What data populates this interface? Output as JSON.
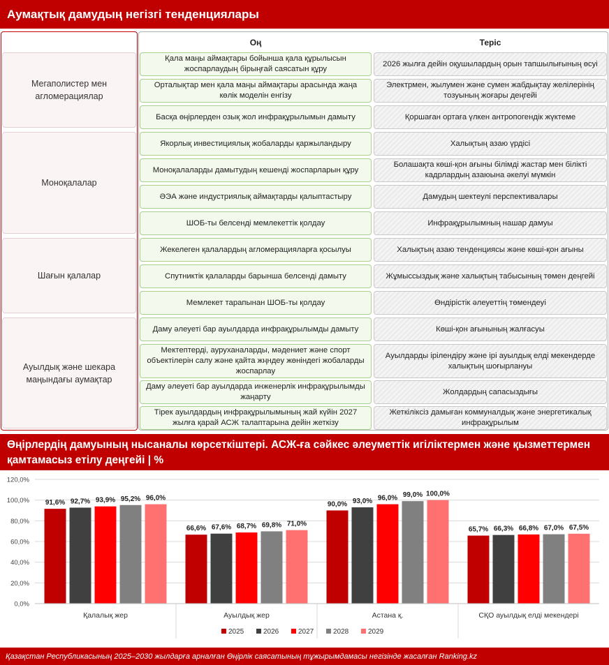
{
  "header": {
    "title": "Аумақтық дамудың негізгі тенденциялары"
  },
  "table": {
    "col_positive": "Оң",
    "col_negative": "Теріс",
    "categories": [
      "Мегаполистер мен агломерациялар",
      "Моноқалалар",
      "Шағын қалалар",
      "Ауылдық және шекара маңындағы аумақтар"
    ],
    "rows": [
      {
        "pos": "Қала маңы аймақтары бойынша қала құрылысын жоспарлаудың бірыңғай саясатын құру",
        "neg": "2026 жылға дейін оқушылардың орын тапшылығының өсуі"
      },
      {
        "pos": "Орталықтар мен қала маңы аймақтары арасында жаңа көлік моделін енгізу",
        "neg": "Электрмен, жылумен және сумен жабдықтау желілерінің тозуының жоғары деңгейі"
      },
      {
        "pos": "Басқа өңірлерден озық жол инфрақұрылымын дамыту",
        "neg": "Қоршаған ортаға үлкен антропогендік жүктеме"
      },
      {
        "pos": "Якорлық инвестициялық жобаларды қаржыландыру",
        "neg": "Халықтың азаю үрдісі"
      },
      {
        "pos": "Моноқалаларды дамытудың кешенді жоспарларын құру",
        "neg": "Болашақта көші-қон ағыны білімді жастар мен білікті кадрлардың азаюына әкелуі мүмкін"
      },
      {
        "pos": "ӘЭА және индустриялық аймақтарды қалыптастыру",
        "neg": "Дамудың шектеулі перспективалары"
      },
      {
        "pos": "ШОБ-ты белсенді мемлекеттік қолдау",
        "neg": "Инфрақұрылымның нашар дамуы"
      },
      {
        "pos": "Жекелеген қалалардың агломерацияларға қосылуы",
        "neg": "Халықтың азаю тенденциясы және көші-қон ағыны"
      },
      {
        "pos": "Спутниктік қалаларды барынша белсенді дамыту",
        "neg": "Жұмыссыздық және халықтың табысының төмен деңгейі"
      },
      {
        "pos": "Мемлекет тарапынан ШОБ-ты қолдау",
        "neg": "Өндірістік әлеуеттің төмендеуі"
      },
      {
        "pos": "Даму әлеуеті бар ауылдарда инфрақұрылымды дамыту",
        "neg": "Көші-қон ағынының жалғасуы"
      },
      {
        "pos": "Мектептерді, ауруханаларды, мәдениет және спорт объектілерін салу және қайта жңндеу жөніндегі жобаларды жоспарлау",
        "neg": "Ауылдарды ірілендіру және ірі ауылдық елді мекендерде халықтың шоғырлануы"
      },
      {
        "pos": "Даму әлеуеті бар ауылдарда инженерлік инфрақұрылымды жаңарту",
        "neg": "Жолдардың сапасыздығы"
      },
      {
        "pos": "Тірек ауылдардың инфрақұрылымының жай күйін 2027 жылға қарай АСЖ талаптарына дейін жеткізу",
        "neg": "Жеткіліксіз дамыған коммуналдық және энергетикалық инфрақұрылым"
      }
    ]
  },
  "section2": {
    "title": "Өңірлердің дамуының нысаналы көрсеткіштері. АСЖ-ға сәйкес әлеуметтік игіліктермен және қызметтермен қамтамасыз етілу деңгейі | %"
  },
  "chart_data": {
    "type": "bar",
    "categories": [
      "Қалалық жер",
      "Ауылдық жер",
      "Астана қ.",
      "СҚО ауылдық елді мекендері"
    ],
    "series": [
      {
        "name": "2025",
        "color": "#c00000",
        "values": [
          91.6,
          66.6,
          90.0,
          65.7
        ],
        "labels": [
          "91,6%",
          "66,6%",
          "90,0%",
          "65,7%"
        ]
      },
      {
        "name": "2026",
        "color": "#404040",
        "values": [
          92.7,
          67.6,
          93.0,
          66.3
        ],
        "labels": [
          "92,7%",
          "67,6%",
          "93,0%",
          "66,3%"
        ]
      },
      {
        "name": "2027",
        "color": "#ff0000",
        "values": [
          93.9,
          68.7,
          96.0,
          66.8
        ],
        "labels": [
          "93,9%",
          "68,7%",
          "96,0%",
          "66,8%"
        ]
      },
      {
        "name": "2028",
        "color": "#808080",
        "values": [
          95.2,
          69.8,
          99.0,
          67.0
        ],
        "labels": [
          "95,2%",
          "69,8%",
          "99,0%",
          "67,0%"
        ]
      },
      {
        "name": "2029",
        "color": "#ff7171",
        "values": [
          96.0,
          71.0,
          100.0,
          67.5
        ],
        "labels": [
          "96,0%",
          "71,0%",
          "100,0%",
          "67,5%"
        ]
      }
    ],
    "ylim": [
      0,
      120
    ],
    "yticks": [
      "0,0%",
      "20,0%",
      "40,0%",
      "60,0%",
      "80,0%",
      "100,0%",
      "120,0%"
    ],
    "grid": true,
    "legend_position": "bottom"
  },
  "footer": {
    "text": "Қазақстан Республикасының 2025–2030 жылдарға арналған Өңірлік саясатының тұжырымдамасы негізінде жасалған Ranking.kz"
  }
}
